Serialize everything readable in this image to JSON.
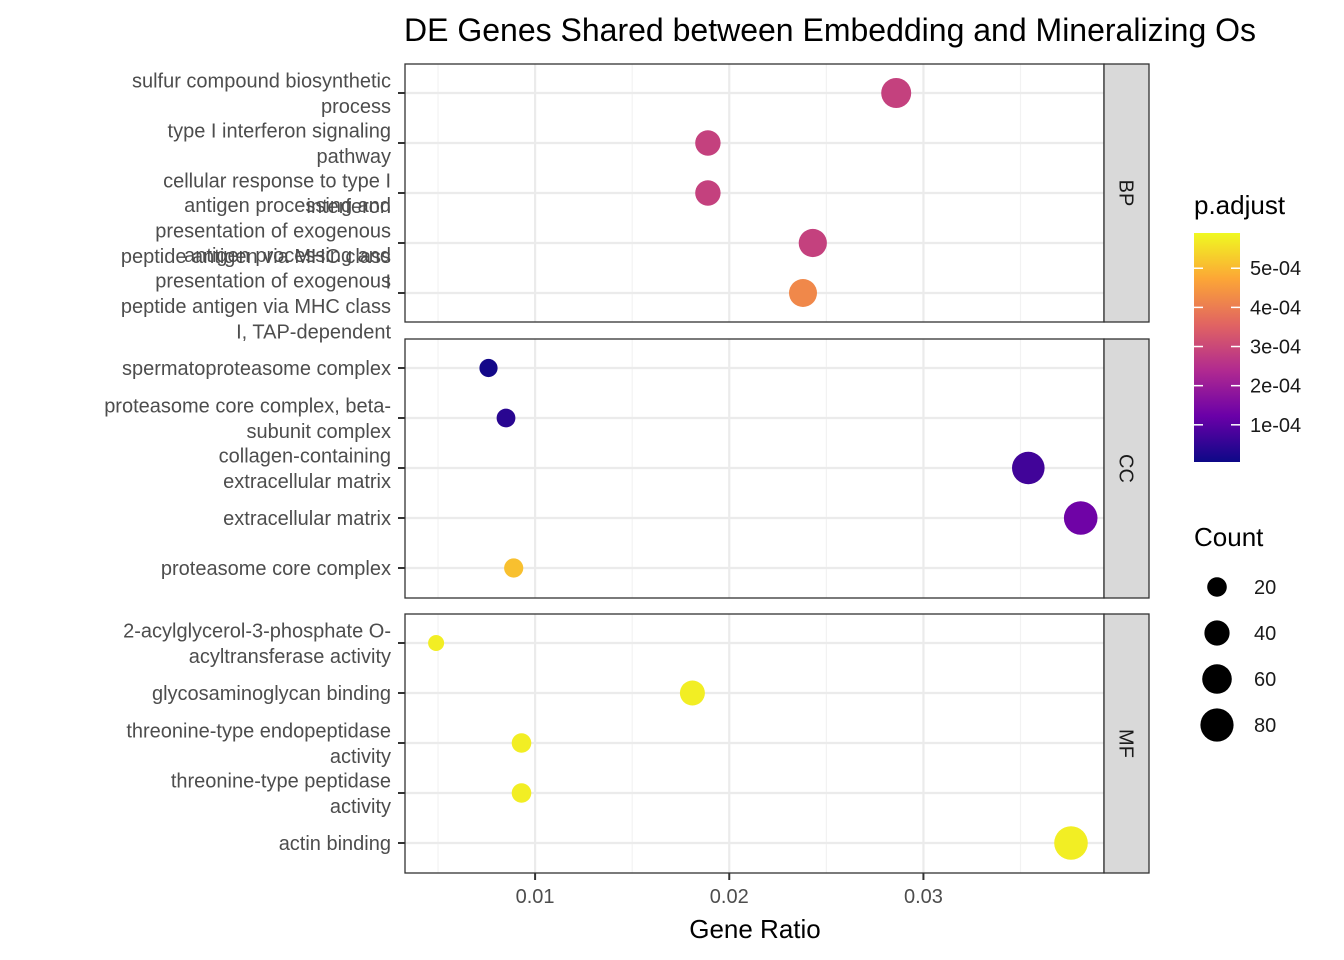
{
  "chart_data": {
    "type": "scatter",
    "title": "DE Genes Shared between Embedding and Mineralizing Os",
    "xlabel": "Gene Ratio",
    "xlim": [
      0.0033,
      0.0393
    ],
    "xticks": [
      0.01,
      0.02,
      0.03
    ],
    "xtick_labels": [
      "0.01",
      "0.02",
      "0.03"
    ],
    "grid": true,
    "color_scale": {
      "title": "p.adjust",
      "range": [
        5e-06,
        0.00059
      ],
      "ticks": [
        0.0001,
        0.0002,
        0.0003,
        0.0004,
        0.0005
      ],
      "tick_labels": [
        "1e-04",
        "2e-04",
        "3e-04",
        "4e-04",
        "5e-04"
      ],
      "colors": [
        "#0d0887",
        "#6a00a8",
        "#b12a90",
        "#e16462",
        "#fca636",
        "#f0f921"
      ]
    },
    "size_scale": {
      "title": "Count",
      "values": [
        20,
        40,
        60,
        80
      ],
      "labels": [
        "20",
        "40",
        "60",
        "80"
      ]
    },
    "legend_position": "right",
    "facets": [
      {
        "name": "BP",
        "terms": [
          {
            "label": [
              "sulfur compound biosynthetic",
              "process"
            ],
            "x": 0.0286,
            "p_adjust": 0.000285,
            "count": 62
          },
          {
            "label": [
              "type I interferon signaling",
              "pathway"
            ],
            "x": 0.0189,
            "p_adjust": 0.000285,
            "count": 41
          },
          {
            "label": [
              "cellular response to type I",
              "interferon"
            ],
            "x": 0.0189,
            "p_adjust": 0.000285,
            "count": 41
          },
          {
            "label": [
              "antigen processing and",
              "presentation of exogenous",
              "peptide antigen via MHC class",
              "I"
            ],
            "x": 0.0243,
            "p_adjust": 0.000285,
            "count": 53
          },
          {
            "label": [
              "antigen processing and",
              "presentation of exogenous",
              "peptide antigen via MHC class",
              "I, TAP-dependent"
            ],
            "x": 0.0238,
            "p_adjust": 0.00042,
            "count": 52
          }
        ]
      },
      {
        "name": "CC",
        "terms": [
          {
            "label": [
              "spermatoproteasome complex"
            ],
            "x": 0.0076,
            "p_adjust": 1.2e-05,
            "count": 16
          },
          {
            "label": [
              "proteasome core complex, beta-",
              "subunit complex"
            ],
            "x": 0.0085,
            "p_adjust": 4e-05,
            "count": 18
          },
          {
            "label": [
              "collagen-containing",
              "extracellular matrix"
            ],
            "x": 0.0354,
            "p_adjust": 7e-05,
            "count": 77
          },
          {
            "label": [
              "extracellular matrix"
            ],
            "x": 0.0381,
            "p_adjust": 0.00013,
            "count": 83
          },
          {
            "label": [
              "proteasome core complex"
            ],
            "x": 0.0089,
            "p_adjust": 0.00051,
            "count": 19
          }
        ]
      },
      {
        "name": "MF",
        "terms": [
          {
            "label": [
              "2-acylglycerol-3-phosphate O-",
              "acyltransferase activity"
            ],
            "x": 0.0049,
            "p_adjust": 0.000575,
            "count": 11
          },
          {
            "label": [
              "glycosaminoglycan binding"
            ],
            "x": 0.0181,
            "p_adjust": 0.000575,
            "count": 39
          },
          {
            "label": [
              "threonine-type endopeptidase",
              "activity"
            ],
            "x": 0.0093,
            "p_adjust": 0.000575,
            "count": 20
          },
          {
            "label": [
              "threonine-type peptidase",
              "activity"
            ],
            "x": 0.0093,
            "p_adjust": 0.000575,
            "count": 20
          },
          {
            "label": [
              "actin binding"
            ],
            "x": 0.0376,
            "p_adjust": 0.000575,
            "count": 82
          }
        ]
      }
    ]
  }
}
